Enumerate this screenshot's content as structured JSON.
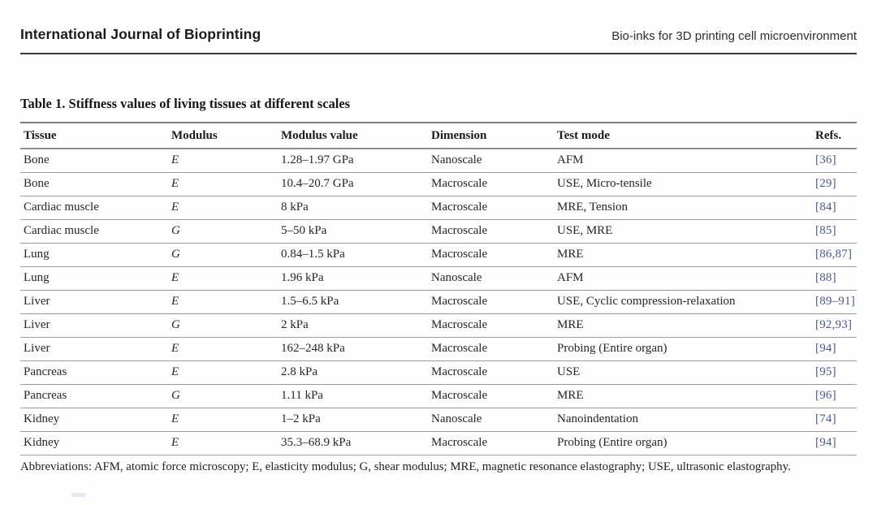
{
  "header": {
    "journal_name": "International Journal of Bioprinting",
    "running_title": "Bio-inks for 3D printing cell microenvironment"
  },
  "table": {
    "caption": "Table 1. Stiffness values of living tissues at different scales",
    "columns": [
      "Tissue",
      "Modulus",
      "Modulus value",
      "Dimension",
      "Test mode",
      "Refs."
    ],
    "rows": [
      [
        "Bone",
        "E",
        "1.28–1.97 GPa",
        "Nanoscale",
        "AFM",
        "[36]"
      ],
      [
        "Bone",
        "E",
        "10.4–20.7 GPa",
        "Macroscale",
        "USE, Micro-tensile",
        "[29]"
      ],
      [
        "Cardiac muscle",
        "E",
        "8 kPa",
        "Macroscale",
        "MRE, Tension",
        "[84]"
      ],
      [
        "Cardiac muscle",
        "G",
        "5–50 kPa",
        "Macroscale",
        "USE, MRE",
        "[85]"
      ],
      [
        "Lung",
        "G",
        "0.84–1.5 kPa",
        "Macroscale",
        "MRE",
        "[86,87]"
      ],
      [
        "Lung",
        "E",
        "1.96 kPa",
        "Nanoscale",
        "AFM",
        "[88]"
      ],
      [
        "Liver",
        "E",
        "1.5–6.5 kPa",
        "Macroscale",
        "USE, Cyclic compression-relaxation",
        "[89–91]"
      ],
      [
        "Liver",
        "G",
        "2 kPa",
        "Macroscale",
        "MRE",
        "[92,93]"
      ],
      [
        "Liver",
        "E",
        "162–248 kPa",
        "Macroscale",
        "Probing (Entire organ)",
        "[94]"
      ],
      [
        "Pancreas",
        "E",
        "2.8 kPa",
        "Macroscale",
        "USE",
        "[95]"
      ],
      [
        "Pancreas",
        "G",
        "1.11 kPa",
        "Macroscale",
        "MRE",
        "[96]"
      ],
      [
        "Kidney",
        "E",
        "1–2 kPa",
        "Nanoscale",
        "Nanoindentation",
        "[74]"
      ],
      [
        "Kidney",
        "E",
        "35.3–68.9 kPa",
        "Macroscale",
        "Probing (Entire organ)",
        "[94]"
      ]
    ],
    "footnote": "Abbreviations: AFM, atomic force microscopy; E, elasticity modulus; G, shear modulus; MRE, magnetic resonance elastography; USE, ultrasonic elastography."
  },
  "colors": {
    "ref_link_blue": "#4a5b87",
    "rule_gray": "#9b9b9b",
    "header_rule_dark": "#3a3a3a",
    "text": "#242424"
  }
}
